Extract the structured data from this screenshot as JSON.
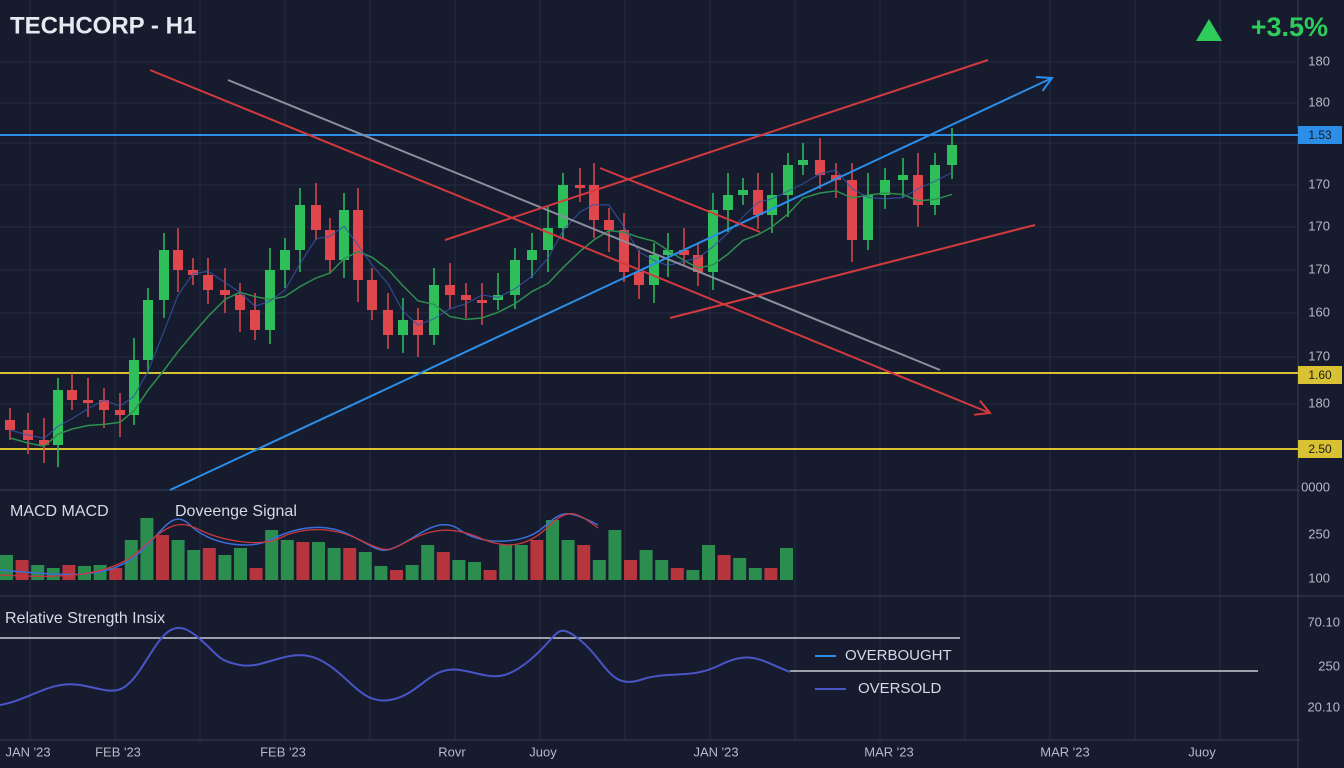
{
  "header": {
    "title": "TECHCORP - H1",
    "change": "+3.5%"
  },
  "price_axis": [
    "180",
    "180",
    "170",
    "170",
    "170",
    "160",
    "170",
    "180",
    "0000"
  ],
  "price_tags": [
    "1.53",
    "1.60",
    "2.50"
  ],
  "macd": {
    "label": "MACD MACD",
    "signal": "Doveenge Signal",
    "axis": [
      "250",
      "100"
    ]
  },
  "rsi": {
    "label": "Relative Strength Insix",
    "axis": [
      "70.10",
      "250",
      "20.10"
    ],
    "legend": [
      "OVERBOUGHT",
      "OVERSOLD"
    ]
  },
  "time_axis": [
    "JAN '23",
    "FEB '23",
    "FEB '23",
    "Rovr",
    "Juoy",
    "JAN '23",
    "MAR '23",
    "MAR '23",
    "Juoy"
  ]
}
